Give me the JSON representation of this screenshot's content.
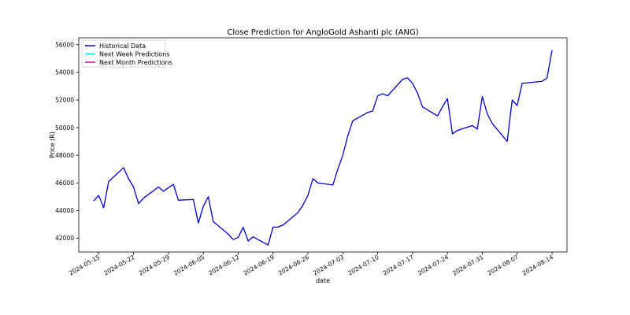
{
  "chart_data": {
    "type": "line",
    "title": "Close Prediction for AngloGold Ashanti plc (ANG)",
    "xlabel": "date",
    "ylabel": "Price (R)",
    "ylim": [
      41000,
      56500
    ],
    "xlim": [
      "2024-05-11",
      "2024-08-17"
    ],
    "grid": false,
    "legend_placement": "top-left",
    "xticks": [
      "2024-05-15",
      "2024-05-22",
      "2024-05-29",
      "2024-06-05",
      "2024-06-12",
      "2024-06-19",
      "2024-06-26",
      "2024-07-03",
      "2024-07-10",
      "2024-07-17",
      "2024-07-24",
      "2024-07-31",
      "2024-08-07",
      "2024-08-14"
    ],
    "yticks": [
      42000,
      44000,
      46000,
      48000,
      50000,
      52000,
      54000,
      56000
    ],
    "series": [
      {
        "name": "Historical Data",
        "color": "#0000cc",
        "points": [
          [
            "2024-05-14",
            44700
          ],
          [
            "2024-05-15",
            45100
          ],
          [
            "2024-05-16",
            44200
          ],
          [
            "2024-05-17",
            46100
          ],
          [
            "2024-05-20",
            47100
          ],
          [
            "2024-05-21",
            46300
          ],
          [
            "2024-05-22",
            45700
          ],
          [
            "2024-05-23",
            44500
          ],
          [
            "2024-05-24",
            44900
          ],
          [
            "2024-05-27",
            45700
          ],
          [
            "2024-05-28",
            45400
          ],
          [
            "2024-05-30",
            45900
          ],
          [
            "2024-05-31",
            44750
          ],
          [
            "2024-06-03",
            44800
          ],
          [
            "2024-06-04",
            43100
          ],
          [
            "2024-06-05",
            44300
          ],
          [
            "2024-06-06",
            45000
          ],
          [
            "2024-06-07",
            43200
          ],
          [
            "2024-06-10",
            42300
          ],
          [
            "2024-06-11",
            41900
          ],
          [
            "2024-06-12",
            42050
          ],
          [
            "2024-06-13",
            42800
          ],
          [
            "2024-06-14",
            41800
          ],
          [
            "2024-06-15",
            42100
          ],
          [
            "2024-06-18",
            41500
          ],
          [
            "2024-06-19",
            42800
          ],
          [
            "2024-06-20",
            42800
          ],
          [
            "2024-06-21",
            42950
          ],
          [
            "2024-06-24",
            43850
          ],
          [
            "2024-06-25",
            44400
          ],
          [
            "2024-06-26",
            45100
          ],
          [
            "2024-06-27",
            46300
          ],
          [
            "2024-06-28",
            46000
          ],
          [
            "2024-07-01",
            45850
          ],
          [
            "2024-07-02",
            47000
          ],
          [
            "2024-07-03",
            48000
          ],
          [
            "2024-07-04",
            49400
          ],
          [
            "2024-07-05",
            50500
          ],
          [
            "2024-07-08",
            51100
          ],
          [
            "2024-07-09",
            51200
          ],
          [
            "2024-07-10",
            52300
          ],
          [
            "2024-07-11",
            52450
          ],
          [
            "2024-07-12",
            52300
          ],
          [
            "2024-07-15",
            53500
          ],
          [
            "2024-07-16",
            53600
          ],
          [
            "2024-07-17",
            53200
          ],
          [
            "2024-07-18",
            52500
          ],
          [
            "2024-07-19",
            51500
          ],
          [
            "2024-07-22",
            50850
          ],
          [
            "2024-07-23",
            51500
          ],
          [
            "2024-07-24",
            52100
          ],
          [
            "2024-07-25",
            49550
          ],
          [
            "2024-07-26",
            49800
          ],
          [
            "2024-07-29",
            50150
          ],
          [
            "2024-07-30",
            49900
          ],
          [
            "2024-07-31",
            52250
          ],
          [
            "2024-08-01",
            51000
          ],
          [
            "2024-08-02",
            50300
          ],
          [
            "2024-08-05",
            49000
          ],
          [
            "2024-08-06",
            52000
          ],
          [
            "2024-08-07",
            51600
          ],
          [
            "2024-08-08",
            53200
          ],
          [
            "2024-08-12",
            53350
          ],
          [
            "2024-08-13",
            53600
          ],
          [
            "2024-08-14",
            55600
          ]
        ]
      },
      {
        "name": "Next Week Predictions",
        "color": "#00e5e5",
        "points": []
      },
      {
        "name": "Next Month Predictions",
        "color": "#cc00cc",
        "points": []
      }
    ]
  }
}
